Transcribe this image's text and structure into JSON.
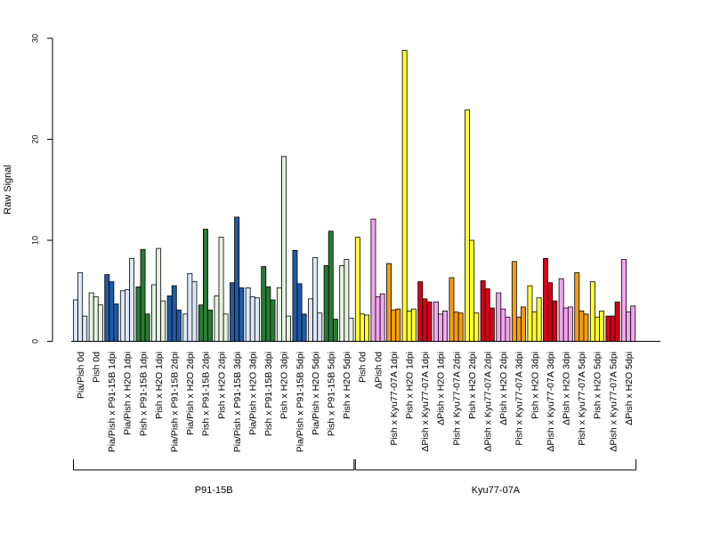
{
  "chart_data": {
    "type": "bar",
    "ylabel": "Raw Signal",
    "ylim": [
      0,
      30
    ],
    "yticks": [
      0,
      10,
      20,
      30
    ],
    "categories": [
      "Pia/Pish 0d",
      "Pish 0d",
      "Pia/Pish x P91-15B 1dpi",
      "Pia/Pish x H2O 1dpi",
      "Pish x P91-15B 1dpi",
      "Pish x H2O 1dpi",
      "Pia/Pish x P91-15B 2dpi",
      "Pia/Pish x H2O 2dpi",
      "Pish x P91-15B 2dpi",
      "Pish x H2O 2dpi",
      "Pia/Pish x P91-15B 3dpi",
      "Pia/Pish x H2O 3dpi",
      "Pish x P91-15B 3dpi",
      "Pish x H2O 3dpi",
      "Pia/Pish x P91-15B 5dpi",
      "Pia/Pish x H2O 5dpi",
      "Pish x P91-15B 5dpi",
      "Pish x H2O 5dpi",
      "Pish 0d",
      "ΔPish 0d",
      "Pish x Kyu77-07A 1dpi",
      "Pish x H2O 1dpi",
      "ΔPish x Kyu77-07A 1dpi",
      "ΔPish x H2O 1dpi",
      "Pish x Kyu77-07A 2dpi",
      "Pish x H2O 2dpi",
      "ΔPish x Kyu77-07A 2dpi",
      "ΔPish x H2O 2dpi",
      "Pish x Kyu77-07A 3dpi",
      "Pish x H2O 3dpi",
      "ΔPish x Kyu77-07A 3dpi",
      "ΔPish x H2O 3dpi",
      "Pish x Kyu77-07A 5dpi",
      "Pish x H2O 5dpi",
      "ΔPish x Kyu77-07A 5dpi",
      "ΔPish x H2O 5dpi"
    ],
    "colors": [
      "#dce8f7",
      "#e6f3e0",
      "#1f5aa6",
      "#dce8f7",
      "#2a7a35",
      "#e6f3e0",
      "#1f5aa6",
      "#dce8f7",
      "#2a7a35",
      "#e6f3e0",
      "#1f5aa6",
      "#dce8f7",
      "#2a7a35",
      "#e6f3e0",
      "#1f5aa6",
      "#dce8f7",
      "#2a7a35",
      "#e6f3e0",
      "#ffff33",
      "#f2a6ee",
      "#f39c12",
      "#ffff33",
      "#d7001a",
      "#f2a6ee",
      "#f39c12",
      "#ffff33",
      "#d7001a",
      "#f2a6ee",
      "#f39c12",
      "#ffff33",
      "#d7001a",
      "#f2a6ee",
      "#f39c12",
      "#ffff33",
      "#d7001a",
      "#f2a6ee"
    ],
    "values": [
      [
        4.1,
        6.8,
        2.5
      ],
      [
        4.8,
        4.4,
        3.6
      ],
      [
        6.6,
        5.9,
        3.7
      ],
      [
        5.0,
        5.1,
        8.2
      ],
      [
        5.4,
        9.1,
        2.7
      ],
      [
        5.6,
        9.2,
        4.0
      ],
      [
        4.5,
        5.5,
        3.1
      ],
      [
        2.7,
        6.7,
        5.9
      ],
      [
        3.6,
        11.1,
        3.1
      ],
      [
        4.5,
        10.3,
        2.7
      ],
      [
        5.8,
        12.3,
        5.3
      ],
      [
        5.3,
        4.4,
        4.3
      ],
      [
        7.4,
        5.4,
        4.1
      ],
      [
        5.3,
        18.3,
        2.5
      ],
      [
        9.0,
        5.7,
        2.7
      ],
      [
        4.2,
        8.3,
        2.8
      ],
      [
        7.5,
        10.9,
        2.2
      ],
      [
        7.5,
        8.1,
        2.3
      ],
      [
        10.3,
        2.7,
        2.6
      ],
      [
        12.1,
        4.4,
        4.7
      ],
      [
        7.7,
        3.1,
        3.2
      ],
      [
        28.8,
        3.0,
        3.2
      ],
      [
        5.9,
        4.2,
        3.9
      ],
      [
        3.9,
        2.7,
        3.0
      ],
      [
        6.3,
        2.9,
        2.8
      ],
      [
        22.9,
        10.0,
        2.8
      ],
      [
        6.0,
        5.2,
        3.3
      ],
      [
        4.8,
        3.2,
        2.4
      ],
      [
        7.9,
        2.4,
        3.4
      ],
      [
        5.5,
        2.9,
        4.3
      ],
      [
        8.2,
        5.8,
        4.0
      ],
      [
        6.2,
        3.3,
        3.4
      ],
      [
        6.8,
        3.0,
        2.7
      ],
      [
        5.9,
        2.4,
        3.0
      ],
      [
        2.5,
        2.5,
        3.9
      ],
      [
        8.1,
        2.9,
        3.5
      ]
    ],
    "groups": [
      {
        "label": "P91-15B",
        "start": 0,
        "end": 17
      },
      {
        "label": "Kyu77-07A",
        "start": 18,
        "end": 35
      }
    ],
    "grid": false,
    "legend": "none"
  }
}
